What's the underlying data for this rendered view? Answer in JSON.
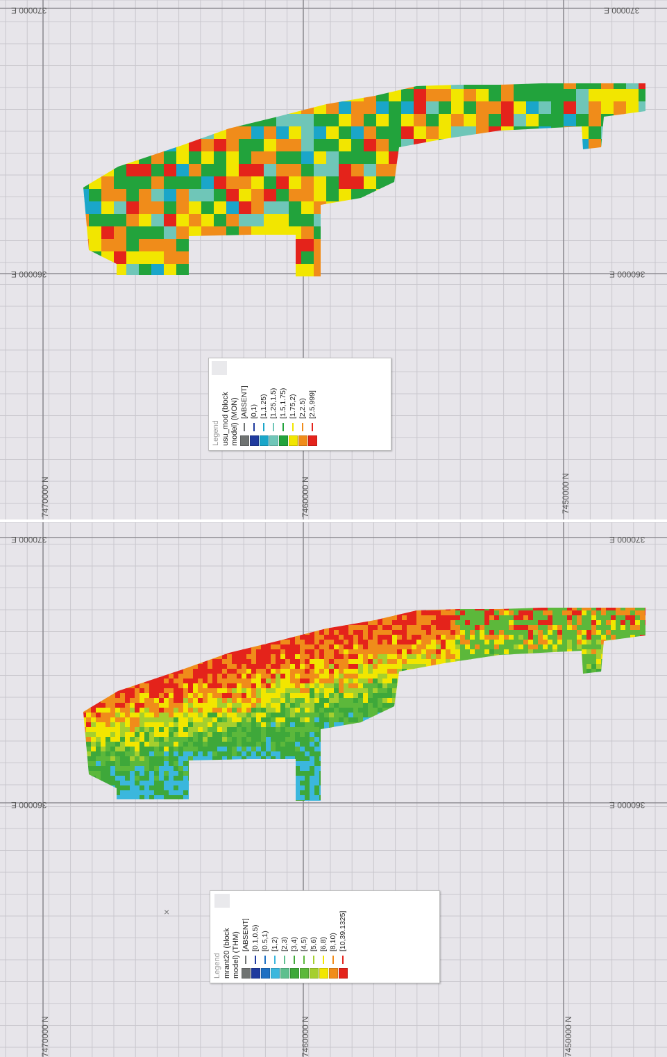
{
  "top_map": {
    "easting_labels": [
      "370000 E",
      "360000 E"
    ],
    "northing_labels": [
      "7470000 N",
      "7460000 N",
      "7450000 N"
    ],
    "legend": {
      "title": "Legend",
      "name_line1": "usu_mod (block",
      "name_line2": "model) (MON)",
      "items": [
        {
          "label": "[ABSENT]",
          "color": "#6f7372"
        },
        {
          "label": "[0,1)",
          "color": "#1f3a9e"
        },
        {
          "label": "[1,1.25)",
          "color": "#1aa6c9"
        },
        {
          "label": "[1.25,1.5)",
          "color": "#6fc6b8"
        },
        {
          "label": "[1.5,1.75)",
          "color": "#22a33c"
        },
        {
          "label": "[1.75,2)",
          "color": "#f2e600"
        },
        {
          "label": "[2,2.5)",
          "color": "#f08c1a"
        },
        {
          "label": "[2.5,999]",
          "color": "#e4231b"
        }
      ]
    }
  },
  "bottom_map": {
    "easting_labels": [
      "370000 E",
      "360000 E"
    ],
    "northing_labels": [
      "7470000 N",
      "7460000 N",
      "7450000 N"
    ],
    "legend": {
      "title": "Legend",
      "name_line1": "mrant20 (block",
      "name_line2": "model) (THM)",
      "items": [
        {
          "label": "[ABSENT]",
          "color": "#6f7372"
        },
        {
          "label": "[0.1,0.5)",
          "color": "#1f3a9e"
        },
        {
          "label": "[0.5,1)",
          "color": "#1c6fc2"
        },
        {
          "label": "[1,2)",
          "color": "#3bb7dd"
        },
        {
          "label": "[2,3)",
          "color": "#5dbf8e"
        },
        {
          "label": "[3,4)",
          "color": "#3ea83a"
        },
        {
          "label": "[4,5)",
          "color": "#5cb83b"
        },
        {
          "label": "[5,6)",
          "color": "#a5cf2e"
        },
        {
          "label": "[6,8)",
          "color": "#f2e600"
        },
        {
          "label": "[8,10)",
          "color": "#f08c1a"
        },
        {
          "label": "[10,39.1325]",
          "color": "#e4231b"
        }
      ]
    }
  }
}
